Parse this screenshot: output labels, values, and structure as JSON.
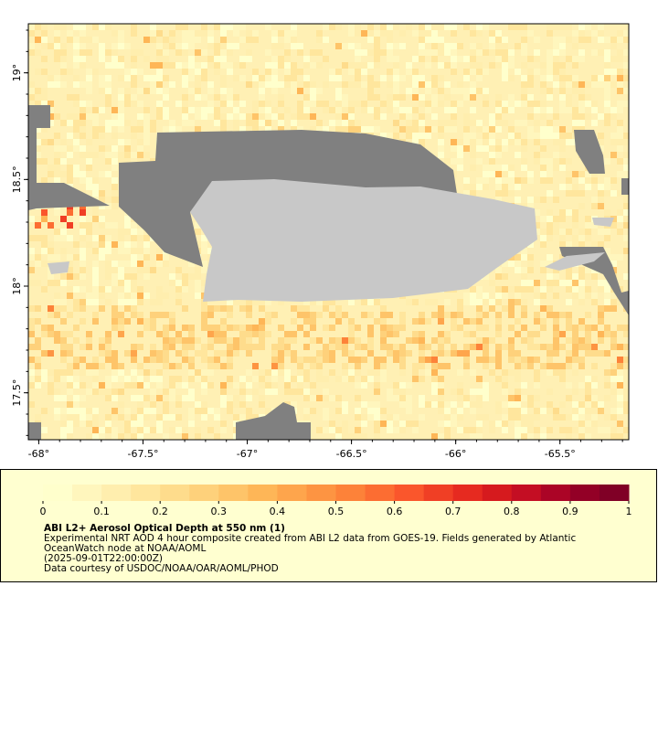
{
  "map": {
    "xlim": [
      -68.05,
      -65.17
    ],
    "ylim": [
      17.28,
      19.23
    ],
    "xticks": [
      {
        "value": -68,
        "label": "-68°"
      },
      {
        "value": -67.5,
        "label": "-67.5°"
      },
      {
        "value": -67,
        "label": "-67°"
      },
      {
        "value": -66.5,
        "label": "-66.5°"
      },
      {
        "value": -66,
        "label": "-66°"
      },
      {
        "value": -65.5,
        "label": "-65.5°"
      }
    ],
    "yticks": [
      {
        "value": 17.5,
        "label": "17.5°"
      },
      {
        "value": 18,
        "label": "18°"
      },
      {
        "value": 18.5,
        "label": "18.5°"
      },
      {
        "value": 19,
        "label": "19°"
      }
    ]
  },
  "colorbar": {
    "range": [
      0,
      1
    ],
    "ticks": [
      0,
      0.1,
      0.2,
      0.3,
      0.4,
      0.5,
      0.6,
      0.7,
      0.8,
      0.9,
      1
    ],
    "colors": [
      "#ffffcc",
      "#fff6bd",
      "#ffeeae",
      "#ffe69d",
      "#fedc8c",
      "#fed17b",
      "#fec469",
      "#feb657",
      "#fea54c",
      "#fd9442",
      "#fd8239",
      "#fc6d32",
      "#fa562c",
      "#f03f25",
      "#e62a20",
      "#d61a1e",
      "#c40e23",
      "#ab0426",
      "#930026",
      "#800026"
    ]
  },
  "caption": {
    "title": "ABI L2+ Aerosol Optical Depth at 550 nm (1)",
    "lines": [
      "Experimental NRT AOD 4 hour composite created from ABI L2 data from GOES-19. Fields generated by Atlantic",
      "OceanWatch node at NOAA/AOML",
      "(2025-09-01T22:00:00Z)",
      "Data courtesy of USDOC/NOAA/OAR/AOML/PHOD"
    ]
  }
}
